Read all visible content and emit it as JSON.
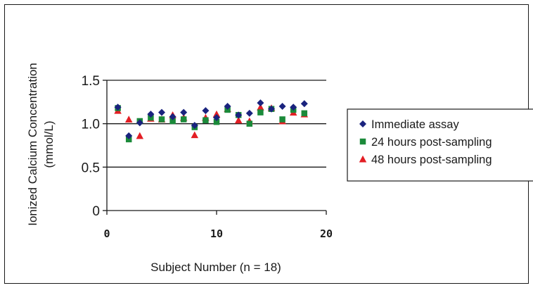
{
  "chart_data": {
    "type": "scatter",
    "title": "",
    "xlabel": "Subject Number (n = 18)",
    "ylabel_line1": "Ionized Calcium  Concentration",
    "ylabel_line2": "(mmol/L)",
    "xlim": [
      0,
      20
    ],
    "ylim": [
      0,
      1.5
    ],
    "xticks": [
      0,
      10,
      20
    ],
    "yticks": [
      0,
      0.5,
      1.0,
      1.5
    ],
    "ytick_labels": [
      "0",
      "0.5",
      "1.0",
      "1.5"
    ],
    "xtick_labels": [
      "0",
      "10",
      "20"
    ],
    "grid": "horizontal",
    "legend_position": "right",
    "series": [
      {
        "name": "Immediate assay",
        "marker": "diamond",
        "color": "#1a237e",
        "x": [
          1,
          2,
          3,
          4,
          5,
          6,
          7,
          8,
          9,
          10,
          11,
          12,
          13,
          14,
          15,
          16,
          17,
          18
        ],
        "y": [
          1.19,
          0.86,
          1.01,
          1.11,
          1.13,
          1.08,
          1.13,
          0.98,
          1.15,
          1.07,
          1.2,
          1.1,
          1.12,
          1.24,
          1.17,
          1.2,
          1.19,
          1.23
        ]
      },
      {
        "name": "24 hours post-sampling",
        "marker": "square",
        "color": "#1b8a3a",
        "x": [
          1,
          2,
          3,
          4,
          5,
          6,
          7,
          8,
          9,
          10,
          11,
          12,
          13,
          14,
          15,
          16,
          17,
          18
        ],
        "y": [
          1.18,
          0.82,
          1.03,
          1.07,
          1.05,
          1.03,
          1.05,
          0.96,
          1.04,
          1.02,
          1.16,
          1.1,
          1.0,
          1.13,
          1.17,
          1.05,
          1.16,
          1.12
        ]
      },
      {
        "name": "48 hours post-sampling",
        "marker": "triangle",
        "color": "#e31e24",
        "x": [
          1,
          2,
          3,
          4,
          5,
          6,
          7,
          8,
          9,
          10,
          11,
          12,
          13,
          14,
          15,
          16,
          17,
          18
        ],
        "y": [
          1.15,
          1.05,
          0.86,
          1.06,
          1.05,
          1.1,
          1.07,
          0.87,
          1.07,
          1.11,
          1.17,
          1.04,
          1.03,
          1.19,
          1.18,
          1.03,
          1.13,
          1.11
        ]
      }
    ]
  }
}
